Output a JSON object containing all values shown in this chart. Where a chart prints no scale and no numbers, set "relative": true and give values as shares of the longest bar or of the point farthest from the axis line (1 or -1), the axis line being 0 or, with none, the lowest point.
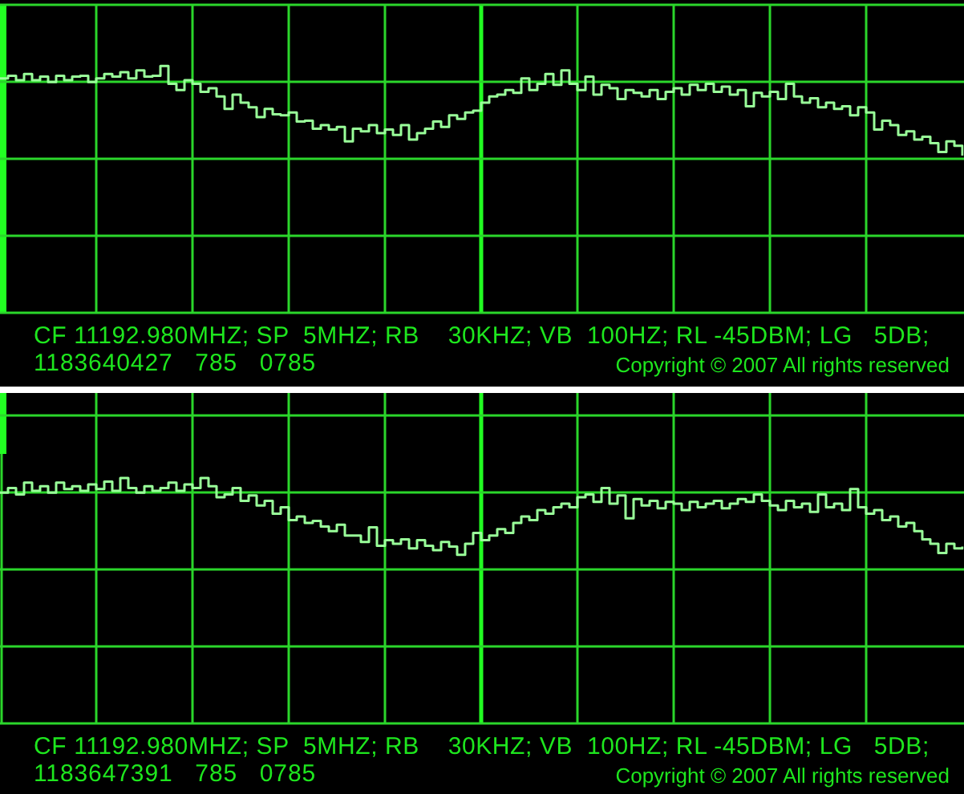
{
  "chart_data": [
    {
      "type": "step",
      "relative": true,
      "grid": true,
      "marker": "none",
      "color": "#99ff99",
      "categories": [
        null,
        null,
        null,
        null,
        null,
        null,
        null,
        null,
        null,
        null,
        null,
        null,
        null,
        null,
        null,
        null,
        null,
        null,
        null,
        null,
        null,
        null,
        null,
        null,
        null,
        null,
        null,
        null,
        null,
        null,
        null,
        null,
        null,
        null,
        null,
        null,
        null,
        null,
        null,
        null,
        null,
        null,
        null,
        null,
        null,
        null,
        null,
        null,
        null,
        null,
        null,
        null,
        null,
        null,
        null,
        null,
        null,
        null,
        null,
        null,
        null,
        null,
        null,
        null,
        null,
        null,
        null,
        null,
        null,
        null,
        null,
        null,
        null,
        null,
        null,
        null,
        null,
        null,
        null,
        null,
        null,
        null,
        null,
        null,
        null,
        null,
        null,
        null,
        null,
        null,
        null,
        null,
        null,
        null,
        null,
        null,
        null,
        null,
        null,
        null,
        null,
        null,
        null,
        null,
        null,
        null,
        null,
        null,
        null,
        null,
        null,
        null,
        null,
        null,
        null,
        null,
        null,
        null,
        null,
        null,
        null
      ],
      "values": [
        0.86,
        0.89,
        0.84,
        0.91,
        0.84,
        0.88,
        0.82,
        0.89,
        0.84,
        0.88,
        0.89,
        0.82,
        0.86,
        0.91,
        0.88,
        0.93,
        0.86,
        0.95,
        0.88,
        0.89,
        1,
        0.8,
        0.73,
        0.84,
        0.8,
        0.71,
        0.75,
        0.66,
        0.52,
        0.68,
        0.59,
        0.54,
        0.43,
        0.52,
        0.46,
        0.45,
        0.48,
        0.38,
        0.39,
        0.3,
        0.34,
        0.29,
        0.32,
        0.16,
        0.3,
        0.27,
        0.34,
        0.25,
        0.29,
        0.23,
        0.34,
        0.18,
        0.25,
        0.3,
        0.38,
        0.32,
        0.45,
        0.41,
        0.48,
        0.5,
        0.59,
        0.66,
        0.68,
        0.73,
        0.7,
        0.86,
        0.73,
        0.8,
        0.91,
        0.79,
        0.95,
        0.8,
        0.73,
        0.88,
        0.68,
        0.79,
        0.75,
        0.63,
        0.73,
        0.7,
        0.66,
        0.73,
        0.63,
        0.71,
        0.75,
        0.68,
        0.79,
        0.73,
        0.8,
        0.71,
        0.77,
        0.68,
        0.73,
        0.55,
        0.7,
        0.66,
        0.71,
        0.63,
        0.8,
        0.66,
        0.59,
        0.64,
        0.54,
        0.59,
        0.52,
        0.55,
        0.45,
        0.54,
        0.48,
        0.29,
        0.39,
        0.34,
        0.23,
        0.27,
        0.18,
        0.21,
        0.14,
        0.04,
        0.16,
        0.11,
        0
      ],
      "annotations": [
        "CF 11192.980MHZ; SP  5MHZ; RB    30KHZ; VB  100HZ; RL -45DBM; LG   5DB;",
        "1183640427   785   0785",
        "Copyright © 2007 All rights reserved"
      ]
    },
    {
      "type": "step",
      "relative": true,
      "grid": true,
      "marker": "none",
      "color": "#99ff99",
      "categories": [
        null,
        null,
        null,
        null,
        null,
        null,
        null,
        null,
        null,
        null,
        null,
        null,
        null,
        null,
        null,
        null,
        null,
        null,
        null,
        null,
        null,
        null,
        null,
        null,
        null,
        null,
        null,
        null,
        null,
        null,
        null,
        null,
        null,
        null,
        null,
        null,
        null,
        null,
        null,
        null,
        null,
        null,
        null,
        null,
        null,
        null,
        null,
        null,
        null,
        null,
        null,
        null,
        null,
        null,
        null,
        null,
        null,
        null,
        null,
        null,
        null,
        null,
        null,
        null,
        null,
        null,
        null,
        null,
        null,
        null,
        null,
        null,
        null,
        null,
        null,
        null,
        null,
        null,
        null,
        null,
        null,
        null,
        null,
        null,
        null,
        null,
        null,
        null,
        null,
        null,
        null,
        null,
        null,
        null,
        null,
        null,
        null,
        null,
        null,
        null,
        null,
        null,
        null,
        null,
        null,
        null,
        null,
        null,
        null,
        null,
        null,
        null,
        null,
        null,
        null,
        null,
        null,
        null,
        null,
        null,
        null
      ],
      "values": [
        0.84,
        0.89,
        0.82,
        0.95,
        0.86,
        0.91,
        0.84,
        0.95,
        0.88,
        0.91,
        0.86,
        0.93,
        0.88,
        0.96,
        0.86,
        1,
        0.89,
        0.84,
        0.91,
        0.86,
        0.89,
        0.95,
        0.86,
        0.93,
        0.89,
        1,
        0.91,
        0.79,
        0.82,
        0.89,
        0.75,
        0.81,
        0.7,
        0.75,
        0.61,
        0.68,
        0.54,
        0.58,
        0.51,
        0.53,
        0.47,
        0.42,
        0.49,
        0.37,
        0.37,
        0.3,
        0.46,
        0.26,
        0.32,
        0.28,
        0.33,
        0.23,
        0.32,
        0.26,
        0.21,
        0.3,
        0.25,
        0.16,
        0.28,
        0.4,
        0.32,
        0.37,
        0.44,
        0.4,
        0.51,
        0.58,
        0.54,
        0.65,
        0.61,
        0.68,
        0.72,
        0.68,
        0.79,
        0.82,
        0.74,
        0.89,
        0.72,
        0.81,
        0.56,
        0.77,
        0.7,
        0.75,
        0.67,
        0.74,
        0.72,
        0.65,
        0.74,
        0.68,
        0.72,
        0.75,
        0.67,
        0.72,
        0.77,
        0.74,
        0.82,
        0.75,
        0.7,
        0.65,
        0.75,
        0.68,
        0.72,
        0.63,
        0.82,
        0.68,
        0.72,
        0.65,
        0.88,
        0.68,
        0.61,
        0.65,
        0.54,
        0.58,
        0.47,
        0.51,
        0.42,
        0.33,
        0.28,
        0.18,
        0.28,
        0.23,
        0.25
      ],
      "annotations": [
        "CF 11192.980MHZ; SP  5MHZ; RB    30KHZ; VB  100HZ; RL -45DBM; LG   5DB;",
        "1183647391   785   0785",
        "Copyright © 2007 All rights reserved"
      ]
    }
  ]
}
